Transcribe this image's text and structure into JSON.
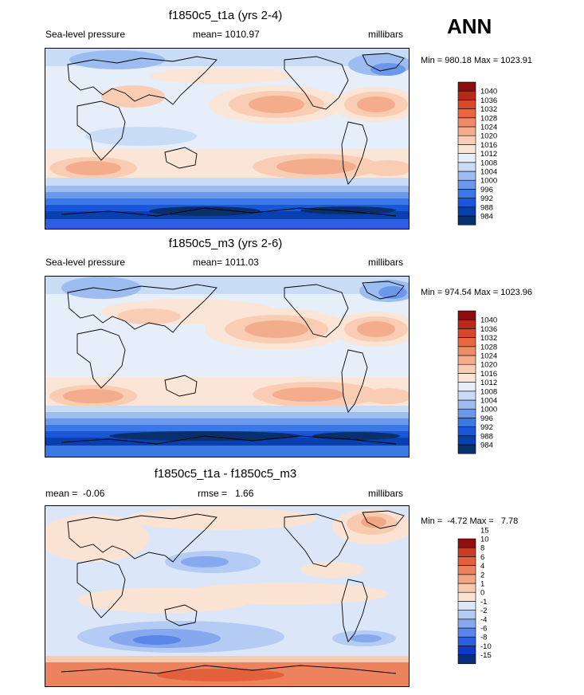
{
  "season": "ANN",
  "colors": {
    "pressure_levels": [
      "#08306b",
      "#0a3fb0",
      "#1a56d9",
      "#3a78e6",
      "#6b98ea",
      "#9dbcf0",
      "#c9dcf6",
      "#e6eefa",
      "#fbe5d6",
      "#f8cdb3",
      "#f4ad8c",
      "#ef8c68",
      "#e8673f",
      "#d8482a",
      "#b72a1a",
      "#8c0d0d"
    ],
    "diff_levels": [
      "#08307a",
      "#1038c8",
      "#2e5ee0",
      "#5a86ea",
      "#86a8ee",
      "#b4cbf3",
      "#dbe6f8",
      "#fbe3d3",
      "#f7c9ad",
      "#f2a684",
      "#ec835e",
      "#e3603a",
      "#c83d24",
      "#8e0f10"
    ],
    "coast": "#000000"
  },
  "chart_data": [
    {
      "type": "heatmap",
      "title": "f1850c5_t1a (yrs 2-4)",
      "left_label": "Sea-level pressure",
      "center_label": "mean= 1010.97",
      "right_label": "millibars",
      "minmax": "Min = 980.18 Max = 1023.91",
      "min": 980.18,
      "max": 1023.91,
      "mean": 1010.97,
      "units": "millibars",
      "colorbar_levels": [
        984,
        988,
        992,
        996,
        1000,
        1004,
        1008,
        1012,
        1016,
        1020,
        1024,
        1028,
        1032,
        1036,
        1040
      ]
    },
    {
      "type": "heatmap",
      "title": "f1850c5_m3 (yrs 2-6)",
      "left_label": "Sea-level pressure",
      "center_label": "mean= 1011.03",
      "right_label": "millibars",
      "minmax": "Min = 974.54 Max = 1023.96",
      "min": 974.54,
      "max": 1023.96,
      "mean": 1011.03,
      "units": "millibars",
      "colorbar_levels": [
        984,
        988,
        992,
        996,
        1000,
        1004,
        1008,
        1012,
        1016,
        1020,
        1024,
        1028,
        1032,
        1036,
        1040
      ]
    },
    {
      "type": "heatmap",
      "title": "f1850c5_t1a - f1850c5_m3",
      "left_label": "mean =  -0.06",
      "center_label": "rmse =   1.66",
      "right_label": "millibars",
      "minmax": "Min =  -4.72 Max =   7.78",
      "min": -4.72,
      "max": 7.78,
      "mean": -0.06,
      "rmse": 1.66,
      "units": "millibars",
      "colorbar_levels": [
        -15,
        -10,
        -8,
        -6,
        -4,
        -2,
        -1,
        0,
        1,
        2,
        4,
        6,
        8,
        10,
        15
      ]
    }
  ]
}
